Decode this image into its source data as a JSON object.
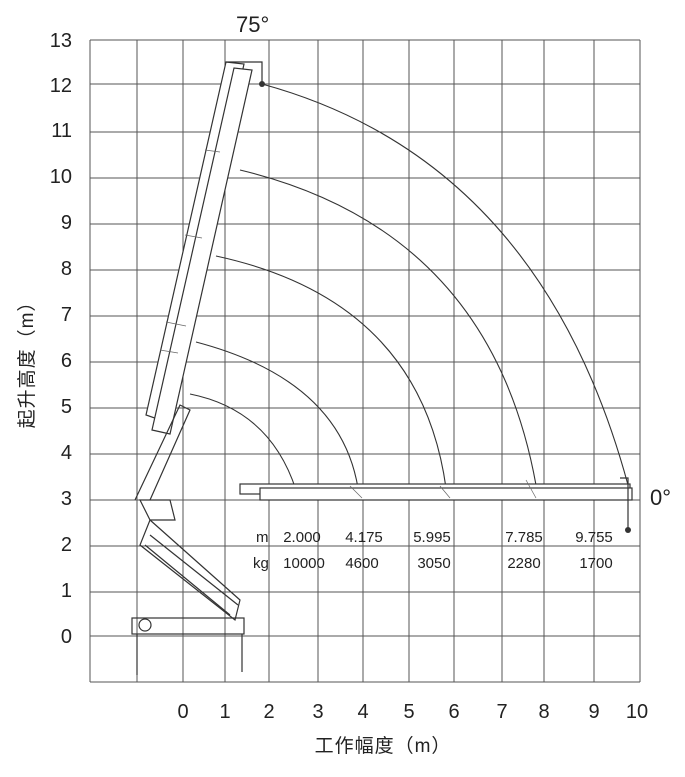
{
  "diagram": {
    "x_axis": {
      "title": "工作幅度（m）",
      "ticks": [
        "0",
        "1",
        "2",
        "3",
        "4",
        "5",
        "6",
        "7",
        "8",
        "9",
        "10"
      ]
    },
    "y_axis": {
      "title": "起升高度（m）",
      "ticks": [
        "0",
        "1",
        "2",
        "3",
        "4",
        "5",
        "6",
        "7",
        "8",
        "9",
        "10",
        "11",
        "12",
        "13"
      ]
    },
    "angle_top": "75°",
    "angle_right": "0°",
    "load_table": {
      "unit_radius": "m",
      "unit_load": "kg",
      "radii": [
        "2.000",
        "4.175",
        "5.995",
        "7.785",
        "9.755"
      ],
      "loads": [
        "10000",
        "4600",
        "3050",
        "2280",
        "1700"
      ]
    }
  }
}
